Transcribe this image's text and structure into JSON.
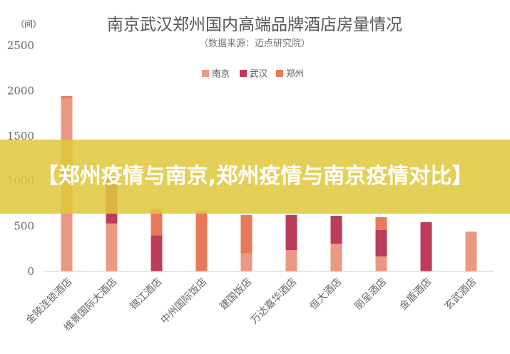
{
  "chart_data": {
    "type": "bar",
    "stacked": true,
    "title": "南京武汉郑州国内高端品牌酒店房量情况",
    "subtitle": "（数据来源：迈点研究院）",
    "ylabel": "（间）",
    "xlabel": "",
    "ylim": [
      0,
      2500
    ],
    "yticks": [
      0,
      500,
      1000,
      1500,
      2000,
      2500
    ],
    "grid": false,
    "legend_position": "top",
    "categories": [
      "金陵连锁酒店",
      "维景国际大酒店",
      "锦江酒店",
      "中州国际饭店",
      "建国饭店",
      "万达嘉华酒店",
      "恒大酒店",
      "丽呈酒店",
      "金盾酒店",
      "玄武酒店"
    ],
    "series": [
      {
        "name": "南京",
        "color": "#ea9a83",
        "values": [
          1920,
          530,
          0,
          0,
          195,
          235,
          305,
          165,
          0,
          440
        ]
      },
      {
        "name": "武汉",
        "color": "#bb3d5a",
        "values": [
          0,
          520,
          400,
          0,
          0,
          390,
          310,
          295,
          545,
          0
        ]
      },
      {
        "name": "郑州",
        "color": "#e8795a",
        "values": [
          20,
          0,
          290,
          670,
          430,
          0,
          0,
          140,
          0,
          0
        ]
      }
    ]
  },
  "banner": {
    "text": "【郑州疫情与南京,郑州疫情与南京疫情对比】"
  }
}
